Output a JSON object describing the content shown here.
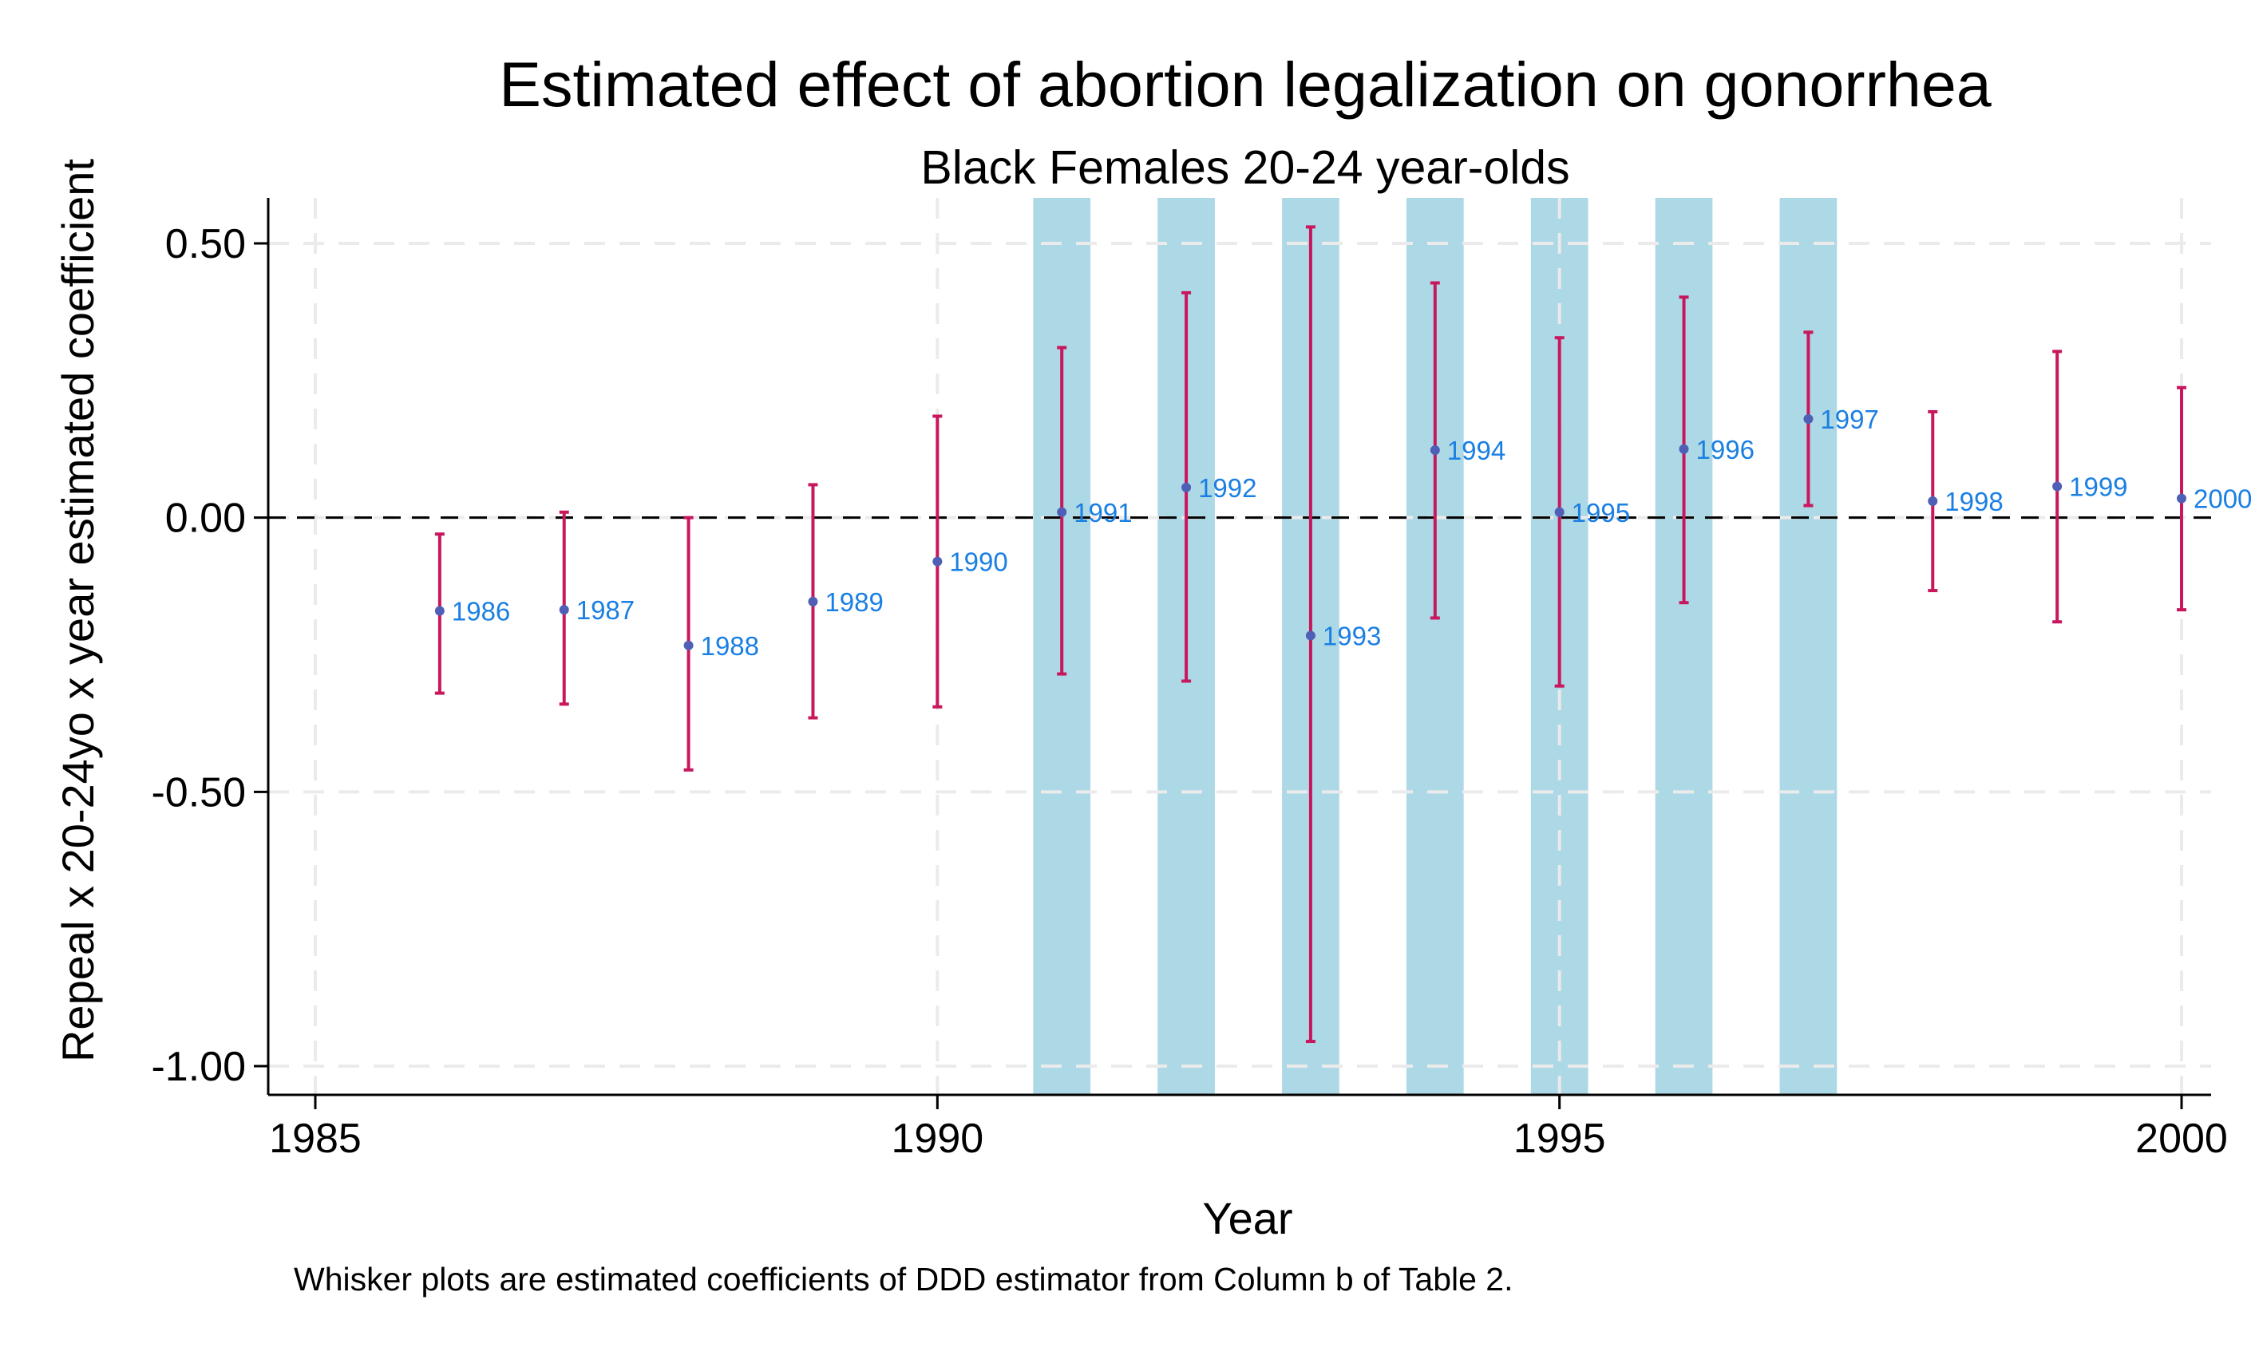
{
  "chart_data": {
    "type": "scatter",
    "title": "Estimated effect of abortion legalization on gonorrhea",
    "subtitle": "Black Females 20-24 year-olds",
    "xlabel": "Year",
    "ylabel": "Repeal x 20-24yo x year estimated coefficient",
    "note": "Whisker plots are estimated coefficients of DDD estimator from Column b of Table 2.",
    "xlim": [
      1985,
      2000
    ],
    "ylim": [
      -1.0,
      0.5
    ],
    "x_ticks": [
      "1985",
      "1990",
      "1995",
      "2000"
    ],
    "y_ticks": [
      "0.50",
      "0.00",
      "-0.50",
      "-1.00"
    ],
    "y_tick_values": [
      0.5,
      0.0,
      -0.5,
      -1.0
    ],
    "x_tick_values": [
      1985,
      1990,
      1995,
      2000
    ],
    "grid": true,
    "reference_line": 0,
    "shaded_years": [
      1991,
      1992,
      1993,
      1994,
      1995,
      1996,
      1997
    ],
    "colors": {
      "point": "#4f5fb5",
      "whisker": "#c8175d",
      "label": "#1a7fe3",
      "shade": "#add8e6",
      "grid": "#ebebeb",
      "reference": "#000000"
    },
    "points": [
      {
        "label": "1986",
        "x": 1986,
        "y": -0.17,
        "lo": -0.32,
        "hi": -0.03
      },
      {
        "label": "1987",
        "x": 1987,
        "y": -0.168,
        "lo": -0.34,
        "hi": 0.01
      },
      {
        "label": "1988",
        "x": 1988,
        "y": -0.233,
        "lo": -0.46,
        "hi": 0.0
      },
      {
        "label": "1989",
        "x": 1989,
        "y": -0.153,
        "lo": -0.365,
        "hi": 0.06
      },
      {
        "label": "1990",
        "x": 1990,
        "y": -0.08,
        "lo": -0.345,
        "hi": 0.185
      },
      {
        "label": "1991",
        "x": 1991,
        "y": 0.01,
        "lo": -0.285,
        "hi": 0.31
      },
      {
        "label": "1992",
        "x": 1992,
        "y": 0.055,
        "lo": -0.298,
        "hi": 0.41
      },
      {
        "label": "1993",
        "x": 1993,
        "y": -0.215,
        "lo": -0.955,
        "hi": 0.53
      },
      {
        "label": "1994",
        "x": 1994,
        "y": 0.123,
        "lo": -0.183,
        "hi": 0.428
      },
      {
        "label": "1995",
        "x": 1995,
        "y": 0.01,
        "lo": -0.307,
        "hi": 0.328
      },
      {
        "label": "1996",
        "x": 1996,
        "y": 0.125,
        "lo": -0.155,
        "hi": 0.402
      },
      {
        "label": "1997",
        "x": 1997,
        "y": 0.18,
        "lo": 0.022,
        "hi": 0.338
      },
      {
        "label": "1998",
        "x": 1998,
        "y": 0.03,
        "lo": -0.133,
        "hi": 0.193
      },
      {
        "label": "1999",
        "x": 1999,
        "y": 0.057,
        "lo": -0.19,
        "hi": 0.303
      },
      {
        "label": "2000",
        "x": 2000,
        "y": 0.035,
        "lo": -0.168,
        "hi": 0.237
      }
    ]
  }
}
